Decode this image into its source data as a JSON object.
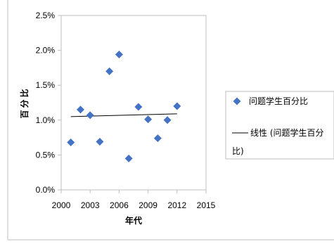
{
  "chart_data": {
    "type": "scatter",
    "title": "",
    "xlabel": "年代",
    "ylabel": "百分比",
    "xlim": [
      2000,
      2015
    ],
    "ylim": [
      0,
      0.025
    ],
    "x_ticks": [
      2000,
      2003,
      2006,
      2009,
      2012,
      2015
    ],
    "x_tick_labels": [
      "2000",
      "2003",
      "2006",
      "2009",
      "2012",
      "2015"
    ],
    "y_ticks": [
      0,
      0.005,
      0.01,
      0.015,
      0.02,
      0.025
    ],
    "y_tick_labels": [
      "0.0%",
      "0.5%",
      "1.0%",
      "1.5%",
      "2.0%",
      "2.5%"
    ],
    "grid": false,
    "legend_position": "right",
    "series": [
      {
        "name": "问题学生百分比",
        "marker": "diamond",
        "color": "#4472C4",
        "points": [
          {
            "x": 2001,
            "y": 0.0068
          },
          {
            "x": 2002,
            "y": 0.0115
          },
          {
            "x": 2003,
            "y": 0.0107
          },
          {
            "x": 2004,
            "y": 0.0069
          },
          {
            "x": 2005,
            "y": 0.017
          },
          {
            "x": 2006,
            "y": 0.0194
          },
          {
            "x": 2007,
            "y": 0.0045
          },
          {
            "x": 2008,
            "y": 0.0119
          },
          {
            "x": 2009,
            "y": 0.0101
          },
          {
            "x": 2010,
            "y": 0.0074
          },
          {
            "x": 2011,
            "y": 0.01
          },
          {
            "x": 2012,
            "y": 0.012
          }
        ]
      }
    ],
    "trendline": {
      "label_line1": "线性 (问题学生百分",
      "label_line2": "比)",
      "color": "#000000",
      "start": {
        "x": 2001,
        "y": 0.0105
      },
      "end": {
        "x": 2012,
        "y": 0.0109
      }
    }
  }
}
